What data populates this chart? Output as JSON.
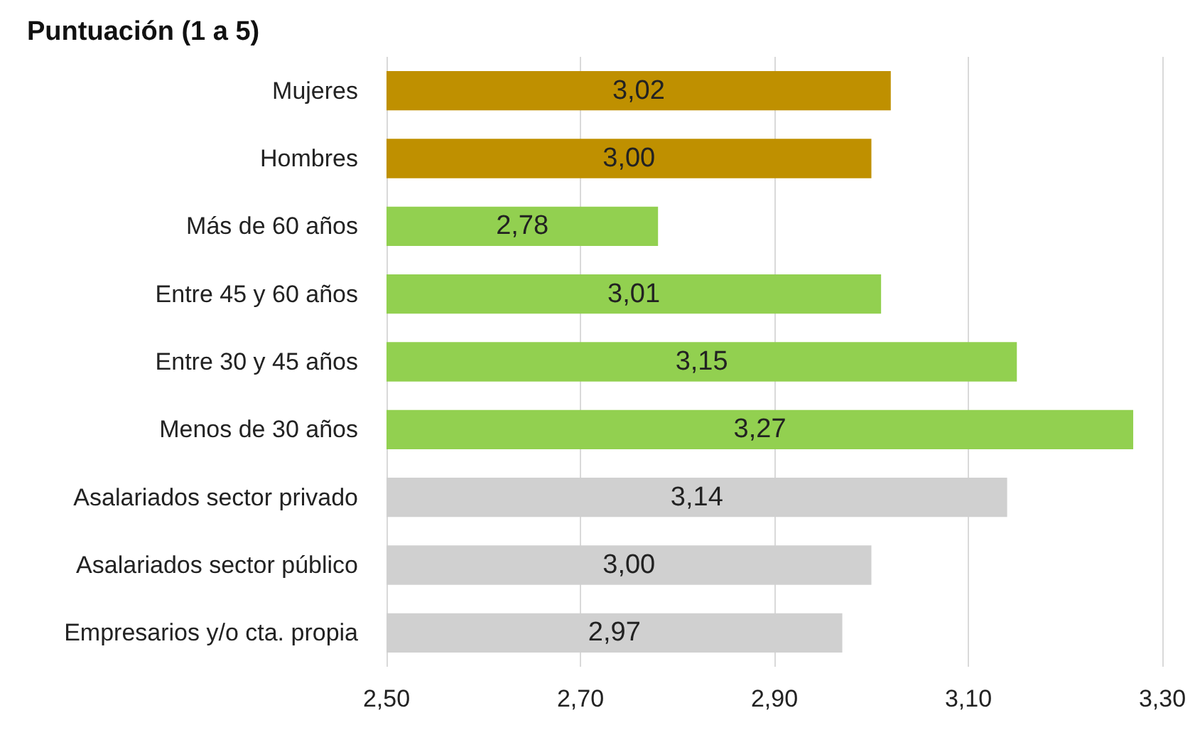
{
  "chart_data": {
    "type": "bar",
    "orientation": "horizontal",
    "title": "Puntuación (1 a 5)",
    "categories": [
      "Mujeres",
      "Hombres",
      "Más de 60 años",
      "Entre 45 y 60 años",
      "Entre 30 y 45 años",
      "Menos de 30 años",
      "Asalariados sector privado",
      "Asalariados sector público",
      "Empresarios y/o cta. propia"
    ],
    "values": [
      3.02,
      3.0,
      2.78,
      3.01,
      3.15,
      3.27,
      3.14,
      3.0,
      2.97
    ],
    "value_labels": [
      "3,02",
      "3,00",
      "2,78",
      "3,01",
      "3,15",
      "3,27",
      "3,14",
      "3,00",
      "2,97"
    ],
    "colors": [
      "#bf9000",
      "#bf9000",
      "#92d050",
      "#92d050",
      "#92d050",
      "#92d050",
      "#d0d0d0",
      "#d0d0d0",
      "#d0d0d0"
    ],
    "xlim": [
      2.5,
      3.3
    ],
    "xticks": [
      {
        "value": 2.5,
        "label": "2,50"
      },
      {
        "value": 2.7,
        "label": "2,70"
      },
      {
        "value": 2.9,
        "label": "2,90"
      },
      {
        "value": 3.1,
        "label": "3,10"
      },
      {
        "value": 3.3,
        "label": "3,30"
      }
    ],
    "grid": "x"
  }
}
